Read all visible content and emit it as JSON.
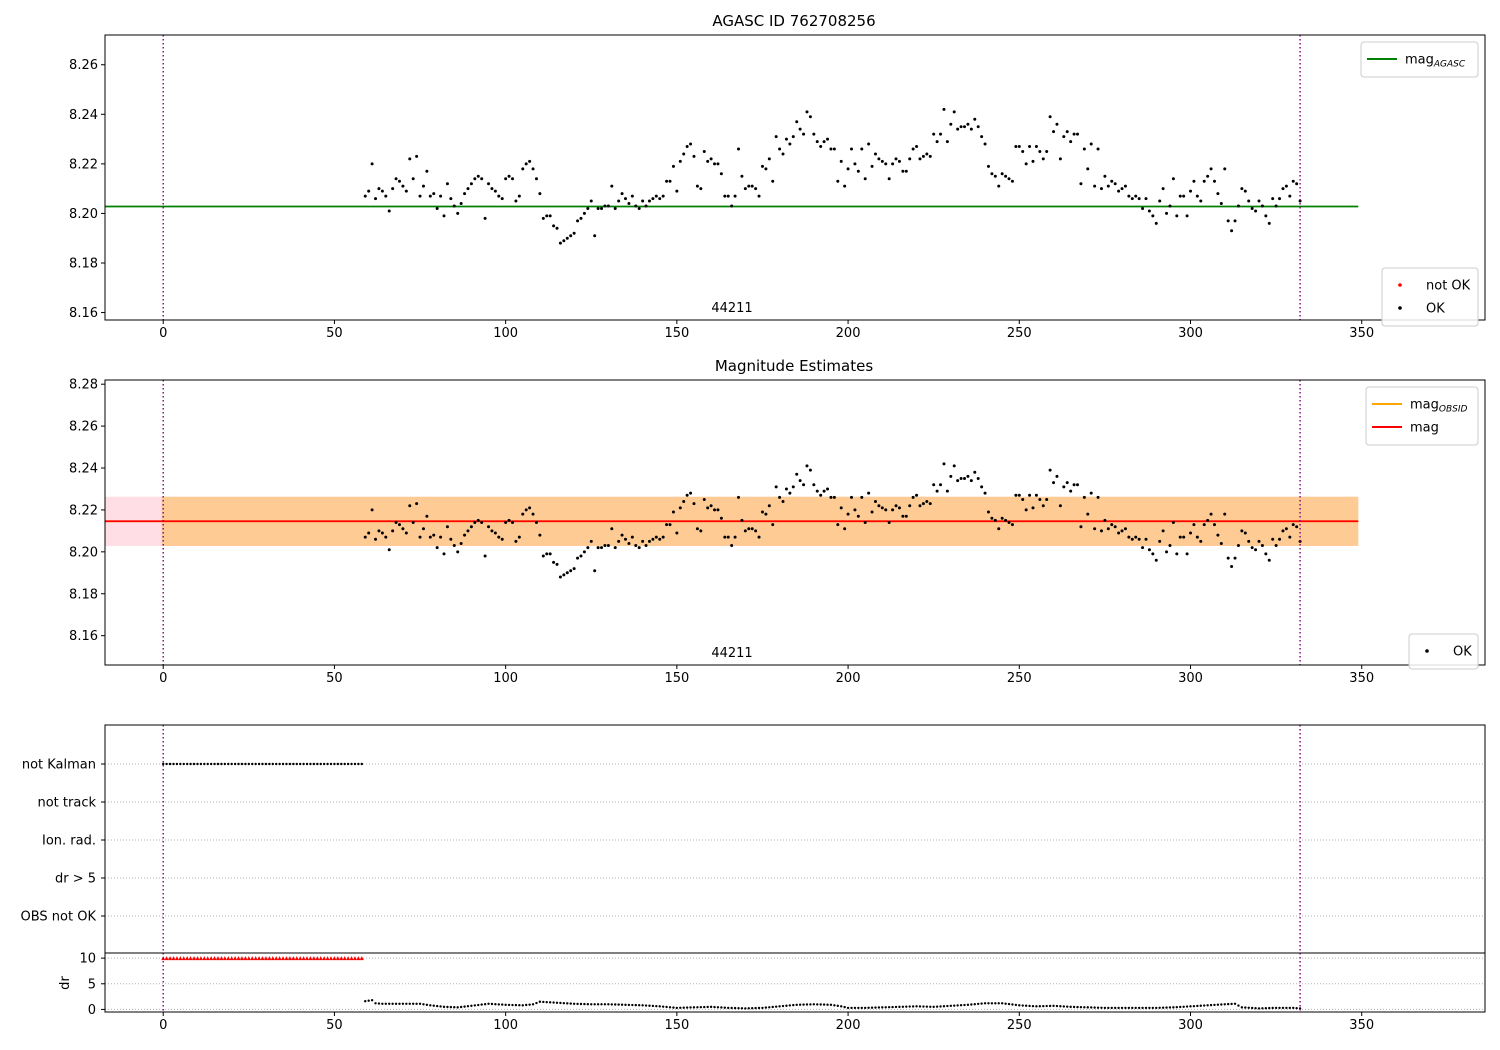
{
  "chart_data": [
    {
      "type": "scatter",
      "title": "AGASC ID 762708256",
      "xlim": [
        -17,
        386
      ],
      "ylim": [
        8.157,
        8.272
      ],
      "x_ticks": [
        0,
        50,
        100,
        150,
        200,
        250,
        300,
        350
      ],
      "y_ticks": [
        8.16,
        8.18,
        8.2,
        8.22,
        8.24,
        8.26
      ],
      "grid": false,
      "annotation": "44211",
      "vlines_x": [
        0,
        332
      ],
      "lines": [
        {
          "name": "mag_AGASC",
          "y": 8.2028,
          "x_range": [
            -17,
            349
          ],
          "color": "#008000"
        }
      ],
      "series": [
        {
          "name": "not OK",
          "color": "#ff0000",
          "points": []
        },
        {
          "name": "OK",
          "color": "#000000",
          "points": "mag_samples"
        }
      ],
      "legend_positions": [
        "top-right",
        "bottom-right"
      ]
    },
    {
      "type": "scatter",
      "title": "Magnitude Estimates",
      "xlim": [
        -17,
        386
      ],
      "ylim": [
        8.146,
        8.282
      ],
      "x_ticks": [
        0,
        50,
        100,
        150,
        200,
        250,
        300,
        350
      ],
      "y_ticks": [
        8.16,
        8.18,
        8.2,
        8.22,
        8.24,
        8.26,
        8.28
      ],
      "grid": false,
      "annotation": "44211",
      "vlines_x": [
        0,
        332
      ],
      "bands": [
        {
          "name": "mag band",
          "y": [
            8.2028,
            8.2263
          ],
          "color": "#ffc0cb"
        },
        {
          "name": "mag_OBSID band",
          "y": [
            8.2028,
            8.2263
          ],
          "color": "#ffa500"
        }
      ],
      "lines": [
        {
          "name": "mag_OBSID",
          "y": 8.2146,
          "x_range": [
            -17,
            349
          ],
          "color": "#ffa500"
        },
        {
          "name": "mag",
          "y": 8.2146,
          "x_range": [
            -17,
            349
          ],
          "color": "#ff0000"
        }
      ],
      "series": [
        {
          "name": "OK",
          "color": "#000000",
          "points": "mag_samples"
        }
      ],
      "legend_positions": [
        "top-right",
        "bottom-right"
      ]
    },
    {
      "type": "scatter",
      "xlim": [
        -17,
        386
      ],
      "categories": [
        "not Kalman",
        "not track",
        "Ion. rad.",
        "dr > 5",
        "OBS not OK"
      ],
      "flags": {
        "not Kalman": [
          0,
          58
        ],
        "not track": [],
        "Ion. rad.": [],
        "dr > 5": [],
        "OBS not OK": []
      },
      "grid": "dotted horizontal",
      "vlines_x": [
        0,
        332
      ]
    },
    {
      "type": "scatter",
      "ylabel": "dr",
      "xlim": [
        -17,
        386
      ],
      "ylim": [
        -0.5,
        11
      ],
      "y_ticks": [
        0,
        5,
        10
      ],
      "x_ticks": [
        0,
        50,
        100,
        150,
        200,
        250,
        300,
        350
      ],
      "grid": "dotted horizontal",
      "vlines_x": [
        0,
        332
      ],
      "clipped_segment": {
        "x_range": [
          0,
          58
        ],
        "value": 10,
        "color": "#ff0000"
      },
      "dr_points": [
        [
          59,
          1.6
        ],
        [
          61,
          1.8
        ],
        [
          62,
          1.2
        ],
        [
          64,
          1.1
        ],
        [
          68,
          1.1
        ],
        [
          72,
          1.1
        ],
        [
          75,
          1.1
        ],
        [
          78,
          0.8
        ],
        [
          82,
          0.5
        ],
        [
          86,
          0.4
        ],
        [
          90,
          0.7
        ],
        [
          95,
          1.1
        ],
        [
          100,
          0.9
        ],
        [
          105,
          0.8
        ],
        [
          108,
          1.0
        ],
        [
          110,
          1.5
        ],
        [
          115,
          1.3
        ],
        [
          120,
          1.1
        ],
        [
          125,
          1.0
        ],
        [
          130,
          1.0
        ],
        [
          135,
          0.9
        ],
        [
          140,
          0.8
        ],
        [
          145,
          0.6
        ],
        [
          150,
          0.3
        ],
        [
          155,
          0.4
        ],
        [
          160,
          0.5
        ],
        [
          165,
          0.3
        ],
        [
          170,
          0.2
        ],
        [
          175,
          0.3
        ],
        [
          180,
          0.6
        ],
        [
          185,
          0.9
        ],
        [
          190,
          1.0
        ],
        [
          195,
          0.9
        ],
        [
          198,
          0.6
        ],
        [
          200,
          0.3
        ],
        [
          205,
          0.3
        ],
        [
          210,
          0.4
        ],
        [
          215,
          0.5
        ],
        [
          220,
          0.6
        ],
        [
          225,
          0.5
        ],
        [
          230,
          0.7
        ],
        [
          235,
          0.9
        ],
        [
          240,
          1.2
        ],
        [
          245,
          1.2
        ],
        [
          250,
          0.8
        ],
        [
          255,
          0.6
        ],
        [
          260,
          0.7
        ],
        [
          265,
          0.5
        ],
        [
          270,
          0.4
        ],
        [
          275,
          0.3
        ],
        [
          280,
          0.3
        ],
        [
          285,
          0.3
        ],
        [
          290,
          0.3
        ],
        [
          295,
          0.4
        ],
        [
          300,
          0.6
        ],
        [
          305,
          0.8
        ],
        [
          310,
          1.0
        ],
        [
          313,
          1.1
        ],
        [
          315,
          0.4
        ],
        [
          320,
          0.2
        ],
        [
          325,
          0.3
        ],
        [
          330,
          0.3
        ],
        [
          332,
          0.2
        ]
      ]
    }
  ],
  "mag_samples": [
    [
      59,
      8.207
    ],
    [
      60,
      8.209
    ],
    [
      61,
      8.22
    ],
    [
      62,
      8.206
    ],
    [
      63,
      8.21
    ],
    [
      64,
      8.209
    ],
    [
      65,
      8.207
    ],
    [
      66,
      8.201
    ],
    [
      67,
      8.21
    ],
    [
      68,
      8.214
    ],
    [
      69,
      8.213
    ],
    [
      70,
      8.211
    ],
    [
      71,
      8.209
    ],
    [
      72,
      8.222
    ],
    [
      73,
      8.214
    ],
    [
      74,
      8.223
    ],
    [
      75,
      8.207
    ],
    [
      76,
      8.211
    ],
    [
      77,
      8.217
    ],
    [
      78,
      8.207
    ],
    [
      79,
      8.208
    ],
    [
      80,
      8.202
    ],
    [
      81,
      8.207
    ],
    [
      82,
      8.199
    ],
    [
      83,
      8.212
    ],
    [
      84,
      8.206
    ],
    [
      85,
      8.203
    ],
    [
      86,
      8.2
    ],
    [
      87,
      8.204
    ],
    [
      88,
      8.208
    ],
    [
      89,
      8.21
    ],
    [
      90,
      8.212
    ],
    [
      91,
      8.214
    ],
    [
      92,
      8.215
    ],
    [
      93,
      8.214
    ],
    [
      94,
      8.198
    ],
    [
      95,
      8.212
    ],
    [
      96,
      8.21
    ],
    [
      97,
      8.209
    ],
    [
      98,
      8.207
    ],
    [
      99,
      8.206
    ],
    [
      100,
      8.214
    ],
    [
      101,
      8.215
    ],
    [
      102,
      8.214
    ],
    [
      103,
      8.205
    ],
    [
      104,
      8.207
    ],
    [
      105,
      8.218
    ],
    [
      106,
      8.22
    ],
    [
      107,
      8.221
    ],
    [
      108,
      8.218
    ],
    [
      109,
      8.214
    ],
    [
      110,
      8.208
    ],
    [
      111,
      8.198
    ],
    [
      112,
      8.199
    ],
    [
      113,
      8.199
    ],
    [
      114,
      8.195
    ],
    [
      115,
      8.194
    ],
    [
      116,
      8.188
    ],
    [
      117,
      8.189
    ],
    [
      118,
      8.19
    ],
    [
      119,
      8.191
    ],
    [
      120,
      8.192
    ],
    [
      121,
      8.197
    ],
    [
      122,
      8.198
    ],
    [
      123,
      8.2
    ],
    [
      124,
      8.202
    ],
    [
      125,
      8.205
    ],
    [
      126,
      8.191
    ],
    [
      127,
      8.202
    ],
    [
      128,
      8.202
    ],
    [
      129,
      8.203
    ],
    [
      130,
      8.203
    ],
    [
      131,
      8.211
    ],
    [
      132,
      8.202
    ],
    [
      133,
      8.205
    ],
    [
      134,
      8.208
    ],
    [
      135,
      8.206
    ],
    [
      136,
      8.204
    ],
    [
      137,
      8.207
    ],
    [
      138,
      8.203
    ],
    [
      139,
      8.202
    ],
    [
      140,
      8.205
    ],
    [
      141,
      8.203
    ],
    [
      142,
      8.205
    ],
    [
      143,
      8.206
    ],
    [
      144,
      8.207
    ],
    [
      145,
      8.206
    ],
    [
      146,
      8.207
    ],
    [
      147,
      8.213
    ],
    [
      148,
      8.213
    ],
    [
      149,
      8.219
    ],
    [
      150,
      8.209
    ],
    [
      151,
      8.221
    ],
    [
      152,
      8.224
    ],
    [
      153,
      8.227
    ],
    [
      154,
      8.228
    ],
    [
      155,
      8.223
    ],
    [
      156,
      8.211
    ],
    [
      157,
      8.21
    ],
    [
      158,
      8.225
    ],
    [
      159,
      8.221
    ],
    [
      160,
      8.222
    ],
    [
      161,
      8.22
    ],
    [
      162,
      8.22
    ],
    [
      163,
      8.216
    ],
    [
      164,
      8.207
    ],
    [
      165,
      8.207
    ],
    [
      166,
      8.203
    ],
    [
      167,
      8.207
    ],
    [
      168,
      8.226
    ],
    [
      169,
      8.215
    ],
    [
      170,
      8.21
    ],
    [
      171,
      8.211
    ],
    [
      172,
      8.211
    ],
    [
      173,
      8.21
    ],
    [
      174,
      8.207
    ],
    [
      175,
      8.219
    ],
    [
      176,
      8.218
    ],
    [
      177,
      8.222
    ],
    [
      178,
      8.213
    ],
    [
      179,
      8.231
    ],
    [
      180,
      8.226
    ],
    [
      181,
      8.224
    ],
    [
      182,
      8.23
    ],
    [
      183,
      8.228
    ],
    [
      184,
      8.231
    ],
    [
      185,
      8.237
    ],
    [
      186,
      8.234
    ],
    [
      187,
      8.232
    ],
    [
      188,
      8.241
    ],
    [
      189,
      8.239
    ],
    [
      190,
      8.232
    ],
    [
      191,
      8.229
    ],
    [
      192,
      8.227
    ],
    [
      193,
      8.229
    ],
    [
      194,
      8.23
    ],
    [
      195,
      8.226
    ],
    [
      196,
      8.226
    ],
    [
      197,
      8.213
    ],
    [
      198,
      8.221
    ],
    [
      199,
      8.211
    ],
    [
      200,
      8.218
    ],
    [
      201,
      8.226
    ],
    [
      202,
      8.22
    ],
    [
      203,
      8.217
    ],
    [
      204,
      8.226
    ],
    [
      205,
      8.214
    ],
    [
      206,
      8.228
    ],
    [
      207,
      8.219
    ],
    [
      208,
      8.224
    ],
    [
      209,
      8.222
    ],
    [
      210,
      8.221
    ],
    [
      211,
      8.22
    ],
    [
      212,
      8.214
    ],
    [
      213,
      8.22
    ],
    [
      214,
      8.222
    ],
    [
      215,
      8.221
    ],
    [
      216,
      8.217
    ],
    [
      217,
      8.217
    ],
    [
      218,
      8.222
    ],
    [
      219,
      8.226
    ],
    [
      220,
      8.227
    ],
    [
      221,
      8.222
    ],
    [
      222,
      8.223
    ],
    [
      223,
      8.224
    ],
    [
      224,
      8.223
    ],
    [
      225,
      8.232
    ],
    [
      226,
      8.229
    ],
    [
      227,
      8.232
    ],
    [
      228,
      8.242
    ],
    [
      229,
      8.229
    ],
    [
      230,
      8.236
    ],
    [
      231,
      8.241
    ],
    [
      232,
      8.234
    ],
    [
      233,
      8.235
    ],
    [
      234,
      8.235
    ],
    [
      235,
      8.236
    ],
    [
      236,
      8.234
    ],
    [
      237,
      8.238
    ],
    [
      238,
      8.235
    ],
    [
      239,
      8.231
    ],
    [
      240,
      8.228
    ],
    [
      241,
      8.219
    ],
    [
      242,
      8.216
    ],
    [
      243,
      8.215
    ],
    [
      244,
      8.211
    ],
    [
      245,
      8.216
    ],
    [
      246,
      8.215
    ],
    [
      247,
      8.214
    ],
    [
      248,
      8.213
    ],
    [
      249,
      8.227
    ],
    [
      250,
      8.227
    ],
    [
      251,
      8.225
    ],
    [
      252,
      8.22
    ],
    [
      253,
      8.227
    ],
    [
      254,
      8.221
    ],
    [
      255,
      8.227
    ],
    [
      256,
      8.225
    ],
    [
      257,
      8.222
    ],
    [
      258,
      8.225
    ],
    [
      259,
      8.239
    ],
    [
      260,
      8.233
    ],
    [
      261,
      8.236
    ],
    [
      262,
      8.222
    ],
    [
      263,
      8.231
    ],
    [
      264,
      8.233
    ],
    [
      265,
      8.229
    ],
    [
      266,
      8.232
    ],
    [
      267,
      8.232
    ],
    [
      268,
      8.212
    ],
    [
      269,
      8.226
    ],
    [
      270,
      8.218
    ],
    [
      271,
      8.228
    ],
    [
      272,
      8.211
    ],
    [
      273,
      8.226
    ],
    [
      274,
      8.21
    ],
    [
      275,
      8.215
    ],
    [
      276,
      8.211
    ],
    [
      277,
      8.213
    ],
    [
      278,
      8.212
    ],
    [
      279,
      8.209
    ],
    [
      280,
      8.21
    ],
    [
      281,
      8.211
    ],
    [
      282,
      8.207
    ],
    [
      283,
      8.206
    ],
    [
      284,
      8.207
    ],
    [
      285,
      8.206
    ],
    [
      286,
      8.202
    ],
    [
      287,
      8.206
    ],
    [
      288,
      8.201
    ],
    [
      289,
      8.199
    ],
    [
      290,
      8.196
    ],
    [
      291,
      8.205
    ],
    [
      292,
      8.21
    ],
    [
      293,
      8.2
    ],
    [
      294,
      8.203
    ],
    [
      295,
      8.214
    ],
    [
      296,
      8.199
    ],
    [
      297,
      8.207
    ],
    [
      298,
      8.207
    ],
    [
      299,
      8.199
    ],
    [
      300,
      8.209
    ],
    [
      301,
      8.213
    ],
    [
      302,
      8.207
    ],
    [
      303,
      8.205
    ],
    [
      304,
      8.213
    ],
    [
      305,
      8.215
    ],
    [
      306,
      8.218
    ],
    [
      307,
      8.213
    ],
    [
      308,
      8.208
    ],
    [
      309,
      8.204
    ],
    [
      310,
      8.218
    ],
    [
      311,
      8.197
    ],
    [
      312,
      8.193
    ],
    [
      313,
      8.197
    ],
    [
      314,
      8.203
    ],
    [
      315,
      8.21
    ],
    [
      316,
      8.209
    ],
    [
      317,
      8.205
    ],
    [
      318,
      8.202
    ],
    [
      319,
      8.201
    ],
    [
      320,
      8.205
    ],
    [
      321,
      8.203
    ],
    [
      322,
      8.199
    ],
    [
      323,
      8.196
    ],
    [
      324,
      8.206
    ],
    [
      325,
      8.203
    ],
    [
      326,
      8.206
    ],
    [
      327,
      8.21
    ],
    [
      328,
      8.211
    ],
    [
      329,
      8.207
    ],
    [
      330,
      8.213
    ],
    [
      331,
      8.212
    ],
    [
      332,
      8.205
    ]
  ],
  "legends": {
    "top1": [
      {
        "text": "mag",
        "sub": "AGASC",
        "color": "#008000"
      }
    ],
    "bottom1": [
      {
        "text": "not OK",
        "color": "#ff0000"
      },
      {
        "text": "OK",
        "color": "#000000"
      }
    ],
    "top2": [
      {
        "text": "mag",
        "sub": "OBSID",
        "color": "#ffa500"
      },
      {
        "text": "mag",
        "sub": "",
        "color": "#ff0000"
      }
    ],
    "bottom2": [
      {
        "text": "OK",
        "color": "#000000"
      }
    ]
  }
}
